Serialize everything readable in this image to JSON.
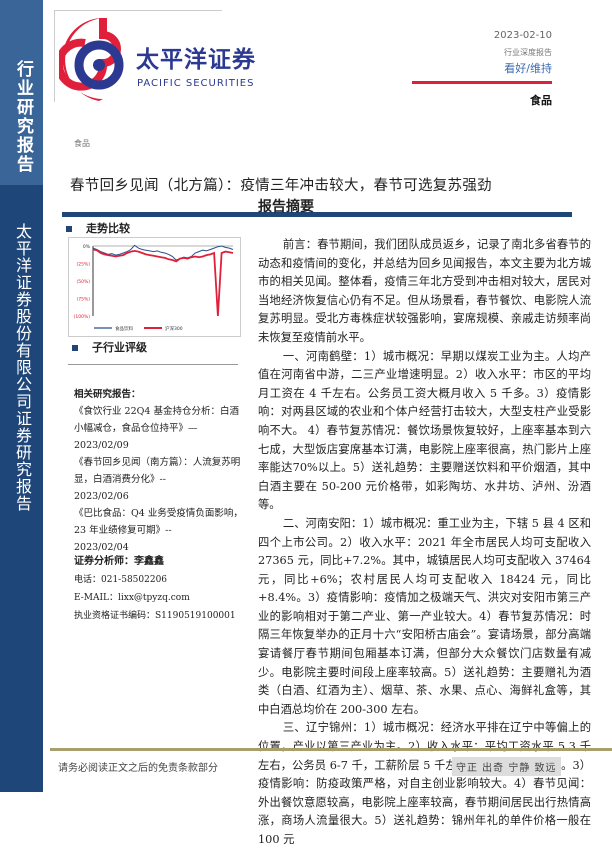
{
  "sidebar": {
    "top_label": "行业研究报告",
    "bottom_label": "太平洋证券股份有限公司证券研究报告"
  },
  "logo": {
    "cn": "太平洋证券",
    "en": "PACIFIC SECURITIES"
  },
  "header": {
    "date": "2023-02-10",
    "report_type": "行业深度报告",
    "rating": "看好/维持",
    "sector": "食品",
    "sector_small": "食品"
  },
  "title": "春节回乡见闻（北方篇）：疫情三年冲击较大，春节可选复苏强劲",
  "left": {
    "trend_heading": "走势比较",
    "sub_rating_heading": "子行业评级",
    "related_heading": "相关研究报告：",
    "related": [
      {
        "title": "《食饮行业 22Q4 基金持仓分析：白酒小幅减仓，食品仓位持平》—",
        "date": "2023/02/09"
      },
      {
        "title": "《春节回乡见闻（南方篇）：人流复苏明显，白酒消费分化》--",
        "date": "2023/02/06"
      },
      {
        "title": "《巴比食品：Q4 业务受疫情负面影响，23 年业绩修复可期》--",
        "date": "2023/02/04"
      }
    ],
    "analyst": {
      "name_line": "证券分析师：李鑫鑫",
      "phone": "电话：021-58502206",
      "email": "E-MAIL：lixx@tpyzq.com",
      "license": "执业资格证书编码：S1190519100001"
    }
  },
  "chart_data": {
    "type": "line",
    "ylim": [
      -100,
      0
    ],
    "yticks": [
      "0%",
      "(25%)",
      "(50%)",
      "(75%)",
      "(100%)"
    ],
    "series": [
      {
        "name": "食品饮料",
        "color": "#2b4f8c",
        "values": [
          -3,
          -5,
          -8,
          -10,
          -12,
          -11,
          -13,
          -12,
          -10,
          -8,
          -5,
          1,
          -3,
          -5,
          -6,
          -7,
          -8,
          -7,
          -9,
          -10,
          -12,
          -15,
          -20,
          -18,
          -16,
          -17,
          -15,
          -10,
          -8,
          -6,
          -7,
          -5,
          -3,
          -1,
          0,
          -2,
          -3,
          -5
        ]
      },
      {
        "name": "沪深300",
        "color": "#e0203a",
        "values": [
          -5,
          -6,
          -10,
          -12,
          -13,
          -14,
          -15,
          -14,
          -13,
          -10,
          -8,
          -7,
          -8,
          -10,
          -12,
          -13,
          -14,
          -15,
          -16,
          -17,
          -19,
          -20,
          -22,
          -18,
          -17,
          -18,
          -16,
          -15,
          -16,
          -15,
          -13,
          -12,
          -10,
          -100,
          -10,
          -8,
          -9,
          -10
        ]
      }
    ],
    "legend": "bottom",
    "grid": false
  },
  "abstract": {
    "heading": "报告摘要",
    "paragraphs": [
      "前言：春节期间，我们团队成员返乡，记录了南北多省春节的动态和疫情间的变化，并总结为回乡见闻报告，本文主要为北方城市的相关见闻。整体看，疫情三年北方受到冲击相对较大，居民对当地经济恢复信心仍有不足。但从场景看，春节餐饮、电影院人流复苏明显。受北方毒株症状较强影响，宴席规模、亲戚走访频率尚未恢复至疫情前水平。",
      "一、河南鹤壁：1）城市概况：早期以煤炭工业为主。人均产值在河南省中游，二三产业增速明显。2）收入水平：市区的平均月工资在 4 千左右。公务员工资大概月收入 5 千多。3）疫情影响：对两县区域的农业和个体户经营打击较大，大型支柱产业受影响不大。 4）春节复苏情况：餐饮场景恢复较好，上座率基本到六七成，大型饭店宴席基本订满，电影院上座率很高，热门影片上座率能达70%以上。5）送礼趋势：主要赠送饮料和平价烟酒，其中白酒主要在 50-200 元价格带，如彩陶坊、水井坊、泸州、汾酒等。",
      "二、河南安阳：1）城市概况：重工业为主，下辖 5 县 4 区和四个上市公司。2）收入水平：2021 年全市居民人均可支配收入 27365 元，同比+7.2%。其中，城镇居民人均可支配收入 37464 元，同比+6%；农村居民人均可支配收入 18424 元，同比+8.4%。3）疫情影响：疫情加之极端天气、洪灾对安阳市第三产业的影响相对于第二产业、第一产业较大。4）春节复苏情况：时隔三年恢复举办的正月十六“安阳桥古庙会”。宴请场景，部分高端宴请餐厅春节期间包厢基本订满，但部分大众餐饮门店数量有减少。电影院主要时间段上座率较高。5）送礼趋势：主要赠礼为酒类（白酒、红酒为主）、烟草、茶、水果、点心、海鲜礼盒等，其中白酒总均价在 200-300 左右。",
      "三、辽宁锦州：1）城市概况：经济水平排在辽宁中等偏上的位置，产业以第三产业为主。2）收入水平：平均工资水平 5.3 千左右，公务员 6-7 千，工薪阶层 5 千左右，服务员 3-4.5 千。3）疫情影响：防疫政策严格，对自主创业影响较大。4）春节见闻：外出餐饮意愿较高，电影院上座率较高，春节期间居民出行热情高涨，商场人流量很大。5）送礼趋势：锦州年礼的单件价格一般在 100 元"
    ]
  },
  "footer": {
    "disclaimer": "请务必阅读正文之后的免责条款部分",
    "motto": "守正 出奇 宁静 致远"
  }
}
